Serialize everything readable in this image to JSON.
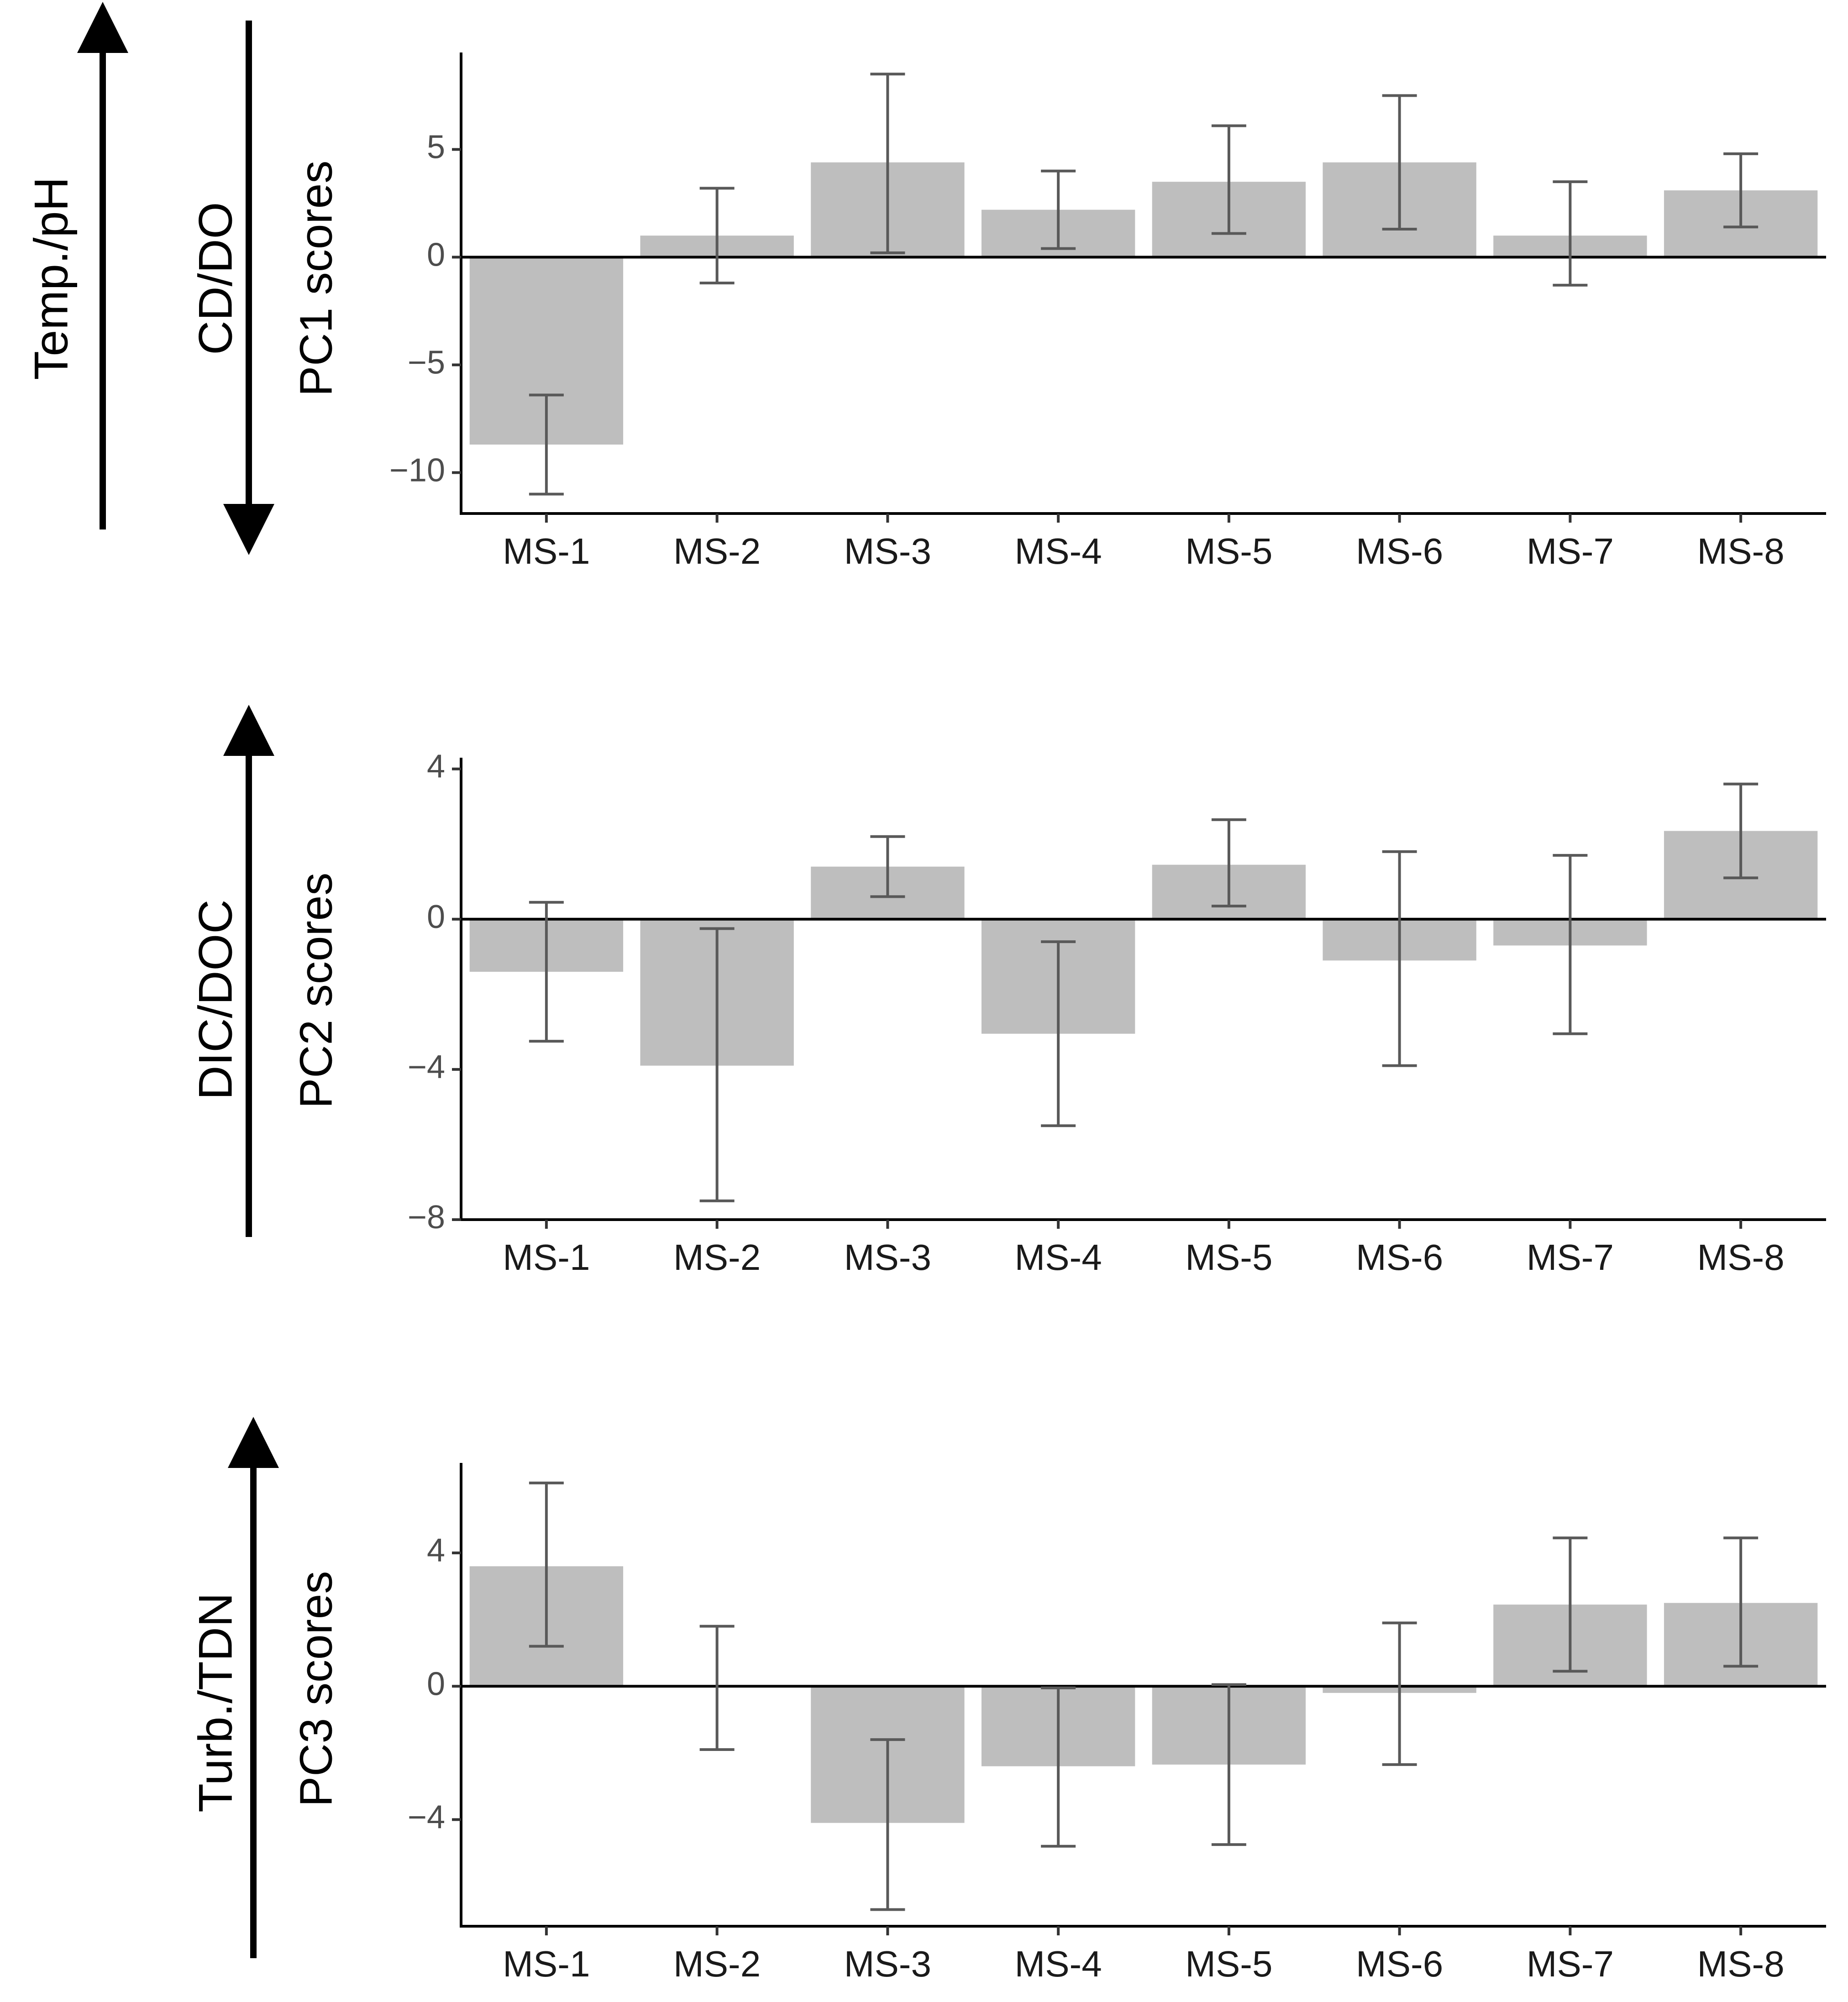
{
  "chart_data": [
    {
      "type": "bar",
      "title": "",
      "ylabel": "PC1 scores",
      "xlabel": "",
      "side_labels": [
        "Temp./pH",
        "CD/DO"
      ],
      "arrows": [
        "up",
        "down"
      ],
      "categories": [
        "MS-1",
        "MS-2",
        "MS-3",
        "MS-4",
        "MS-5",
        "MS-6",
        "MS-7",
        "MS-8"
      ],
      "values": [
        -8.7,
        1.0,
        4.4,
        2.2,
        3.5,
        4.4,
        1.0,
        3.1
      ],
      "error_low": [
        -11.0,
        -1.2,
        0.2,
        0.4,
        1.1,
        1.3,
        -1.3,
        1.4
      ],
      "error_high": [
        -6.4,
        3.2,
        8.5,
        4.0,
        6.1,
        7.5,
        3.5,
        4.8
      ],
      "yticks": [
        -10,
        -5,
        0,
        5
      ],
      "ytick_labels": [
        "-10",
        "-5",
        "0",
        "5"
      ],
      "ylim": [
        -11.9,
        9.5
      ],
      "grid": false
    },
    {
      "type": "bar",
      "title": "",
      "ylabel": "PC2 scores",
      "xlabel": "",
      "side_labels": [
        "DIC/DOC"
      ],
      "arrows": [
        "up"
      ],
      "categories": [
        "MS-1",
        "MS-2",
        "MS-3",
        "MS-4",
        "MS-5",
        "MS-6",
        "MS-7",
        "MS-8"
      ],
      "values": [
        -1.4,
        -3.9,
        1.4,
        -3.05,
        1.45,
        -1.1,
        -0.7,
        2.35
      ],
      "error_low": [
        -3.25,
        -7.5,
        0.6,
        -5.5,
        0.35,
        -3.9,
        -3.05,
        1.1
      ],
      "error_high": [
        0.45,
        -0.25,
        2.2,
        -0.6,
        2.65,
        1.8,
        1.7,
        3.6
      ],
      "yticks": [
        -8,
        -4,
        0,
        4
      ],
      "ytick_labels": [
        "-8",
        "-4",
        "0",
        "4"
      ],
      "ylim": [
        -8.0,
        4.3
      ],
      "grid": false
    },
    {
      "type": "bar",
      "title": "",
      "ylabel": "PC3 scores",
      "xlabel": "",
      "side_labels": [
        "Turb./TDN"
      ],
      "arrows": [
        "up"
      ],
      "categories": [
        "MS-1",
        "MS-2",
        "MS-3",
        "MS-4",
        "MS-5",
        "MS-6",
        "MS-7",
        "MS-8"
      ],
      "values": [
        3.6,
        0.0,
        -4.1,
        -2.4,
        -2.35,
        -0.2,
        2.45,
        2.5
      ],
      "error_low": [
        1.2,
        -1.9,
        -6.7,
        -4.8,
        -4.75,
        -2.35,
        0.45,
        0.6
      ],
      "error_high": [
        6.1,
        1.8,
        -1.6,
        -0.05,
        0.05,
        1.9,
        4.45,
        4.45
      ],
      "yticks": [
        -4,
        0,
        4
      ],
      "ytick_labels": [
        "-4",
        "0",
        "4"
      ],
      "ylim": [
        -7.2,
        6.7
      ],
      "grid": false
    }
  ]
}
